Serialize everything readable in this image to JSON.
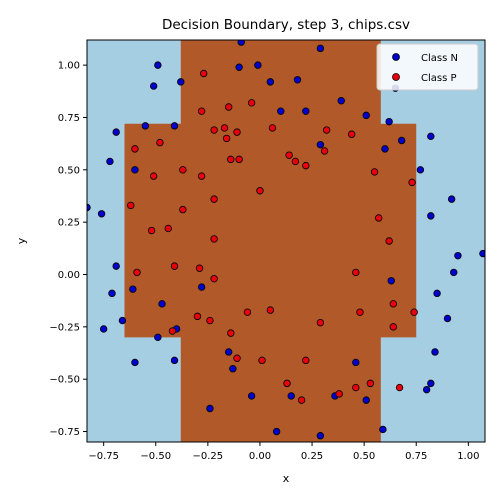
{
  "chart_data": {
    "type": "scatter",
    "title": "Decision Boundary, step 3, chips.csv",
    "xlabel": "x",
    "ylabel": "y",
    "xlim": [
      -0.83,
      1.08
    ],
    "ylim": [
      -0.8,
      1.12
    ],
    "xticks": [
      "−0.75",
      "−0.50",
      "−0.25",
      "0.00",
      "0.25",
      "0.50",
      "0.75",
      "1.00"
    ],
    "xtick_values": [
      -0.75,
      -0.5,
      -0.25,
      0.0,
      0.25,
      0.5,
      0.75,
      1.0
    ],
    "yticks": [
      "−0.75",
      "−0.50",
      "−0.25",
      "0.00",
      "0.25",
      "0.50",
      "0.75",
      "1.00"
    ],
    "ytick_values": [
      -0.75,
      -0.5,
      -0.25,
      0.0,
      0.25,
      0.5,
      0.75,
      1.0
    ],
    "grid": false,
    "legend_position": "top-right",
    "background": {
      "class_n_color": "#a6cee3",
      "class_p_color": "#b15928",
      "class_p_region": [
        [
          -0.38,
          1.12
        ],
        [
          0.58,
          1.12
        ],
        [
          0.58,
          0.72
        ],
        [
          0.75,
          0.72
        ],
        [
          0.75,
          -0.3
        ],
        [
          0.58,
          -0.3
        ],
        [
          0.58,
          -0.8
        ],
        [
          -0.38,
          -0.8
        ],
        [
          -0.38,
          -0.3
        ],
        [
          -0.65,
          -0.3
        ],
        [
          -0.65,
          0.72
        ],
        [
          -0.38,
          0.72
        ]
      ]
    },
    "series": [
      {
        "name": "Class N",
        "color": "#0000cc",
        "points": [
          [
            -0.09,
            1.11
          ],
          [
            0.29,
            1.08
          ],
          [
            -0.49,
            1.0
          ],
          [
            -0.1,
            0.99
          ],
          [
            -0.01,
            1.0
          ],
          [
            0.05,
            0.92
          ],
          [
            0.18,
            0.93
          ],
          [
            -0.51,
            0.9
          ],
          [
            -0.38,
            0.92
          ],
          [
            0.65,
            0.89
          ],
          [
            0.39,
            0.83
          ],
          [
            0.1,
            0.78
          ],
          [
            0.22,
            0.78
          ],
          [
            0.51,
            0.76
          ],
          [
            0.62,
            0.73
          ],
          [
            -0.55,
            0.71
          ],
          [
            -0.41,
            0.71
          ],
          [
            -0.69,
            0.68
          ],
          [
            0.82,
            0.66
          ],
          [
            0.68,
            0.64
          ],
          [
            0.29,
            0.62
          ],
          [
            0.6,
            0.6
          ],
          [
            -0.72,
            0.54
          ],
          [
            -0.6,
            0.5
          ],
          [
            0.77,
            0.5
          ],
          [
            -0.83,
            0.32
          ],
          [
            -0.76,
            0.29
          ],
          [
            0.92,
            0.36
          ],
          [
            0.82,
            0.28
          ],
          [
            -0.69,
            0.04
          ],
          [
            1.07,
            0.1
          ],
          [
            0.95,
            0.09
          ],
          [
            0.93,
            0.01
          ],
          [
            -0.28,
            -0.06
          ],
          [
            -0.61,
            -0.07
          ],
          [
            -0.71,
            -0.09
          ],
          [
            0.63,
            -0.03
          ],
          [
            0.85,
            -0.09
          ],
          [
            -0.47,
            -0.14
          ],
          [
            -0.66,
            -0.22
          ],
          [
            -0.4,
            -0.26
          ],
          [
            -0.75,
            -0.26
          ],
          [
            0.9,
            -0.21
          ],
          [
            -0.49,
            -0.3
          ],
          [
            0.84,
            -0.37
          ],
          [
            -0.15,
            -0.37
          ],
          [
            -0.41,
            -0.41
          ],
          [
            -0.6,
            -0.42
          ],
          [
            0.46,
            -0.42
          ],
          [
            -0.13,
            -0.45
          ],
          [
            0.82,
            -0.52
          ],
          [
            0.8,
            -0.55
          ],
          [
            0.36,
            -0.58
          ],
          [
            0.15,
            -0.58
          ],
          [
            -0.04,
            -0.58
          ],
          [
            0.51,
            -0.6
          ],
          [
            -0.24,
            -0.64
          ],
          [
            0.59,
            -0.74
          ],
          [
            0.08,
            -0.75
          ],
          [
            0.29,
            -0.77
          ]
        ]
      },
      {
        "name": "Class P",
        "color": "#e8000b",
        "points": [
          [
            -0.27,
            0.96
          ],
          [
            -0.04,
            0.82
          ],
          [
            -0.15,
            0.8
          ],
          [
            -0.28,
            0.78
          ],
          [
            -0.22,
            0.69
          ],
          [
            -0.17,
            0.7
          ],
          [
            -0.11,
            0.68
          ],
          [
            0.06,
            0.7
          ],
          [
            0.32,
            0.69
          ],
          [
            -0.48,
            0.63
          ],
          [
            -0.16,
            0.65
          ],
          [
            0.44,
            0.67
          ],
          [
            -0.6,
            0.6
          ],
          [
            0.14,
            0.57
          ],
          [
            0.31,
            0.59
          ],
          [
            -0.14,
            0.55
          ],
          [
            -0.1,
            0.55
          ],
          [
            0.17,
            0.54
          ],
          [
            0.22,
            0.52
          ],
          [
            -0.37,
            0.5
          ],
          [
            0.55,
            0.49
          ],
          [
            -0.51,
            0.47
          ],
          [
            -0.28,
            0.47
          ],
          [
            0.73,
            0.44
          ],
          [
            0.0,
            0.4
          ],
          [
            -0.22,
            0.36
          ],
          [
            -0.62,
            0.33
          ],
          [
            -0.37,
            0.31
          ],
          [
            0.57,
            0.27
          ],
          [
            -0.44,
            0.22
          ],
          [
            -0.52,
            0.21
          ],
          [
            -0.22,
            0.17
          ],
          [
            0.62,
            0.16
          ],
          [
            -0.41,
            0.04
          ],
          [
            -0.29,
            0.03
          ],
          [
            -0.59,
            0.01
          ],
          [
            0.46,
            0.01
          ],
          [
            -0.22,
            -0.02
          ],
          [
            0.64,
            -0.14
          ],
          [
            0.48,
            -0.18
          ],
          [
            -0.06,
            -0.18
          ],
          [
            0.05,
            -0.17
          ],
          [
            0.74,
            -0.18
          ],
          [
            -0.3,
            -0.2
          ],
          [
            -0.24,
            -0.22
          ],
          [
            0.29,
            -0.23
          ],
          [
            0.64,
            -0.25
          ],
          [
            -0.42,
            -0.27
          ],
          [
            -0.14,
            -0.28
          ],
          [
            -0.11,
            -0.4
          ],
          [
            0.01,
            -0.41
          ],
          [
            0.22,
            -0.41
          ],
          [
            0.13,
            -0.52
          ],
          [
            0.46,
            -0.54
          ],
          [
            0.53,
            -0.52
          ],
          [
            0.67,
            -0.54
          ],
          [
            0.38,
            -0.57
          ],
          [
            0.2,
            -0.6
          ]
        ]
      }
    ]
  }
}
